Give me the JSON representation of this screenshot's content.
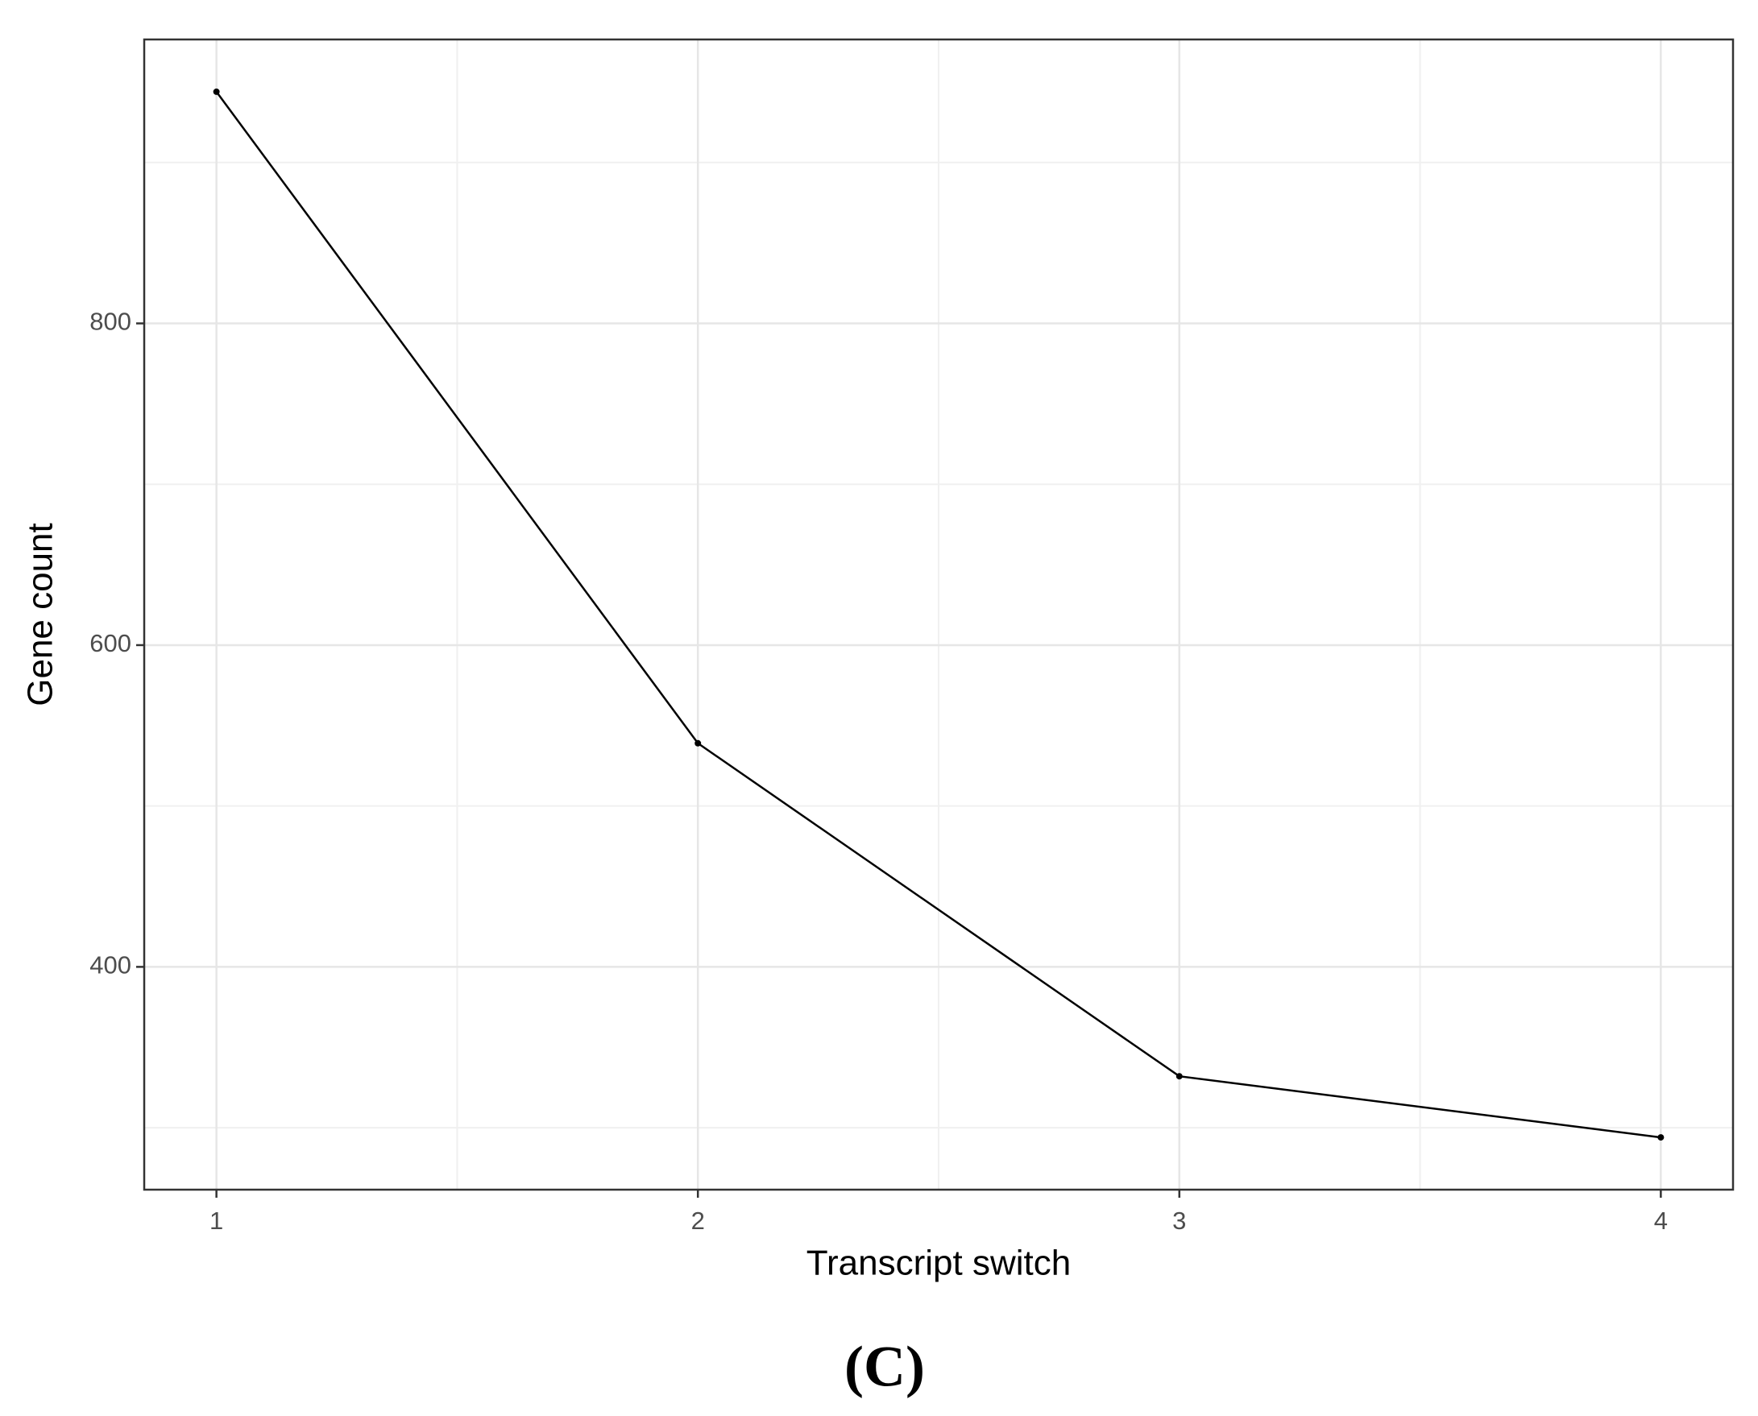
{
  "chart_data": {
    "type": "line",
    "x": [
      1,
      2,
      3,
      4
    ],
    "series": [
      {
        "name": "Gene count",
        "color": "#000000",
        "values": [
          944,
          539,
          332,
          294
        ]
      }
    ],
    "xlim": [
      0.85,
      4.15
    ],
    "xticks": [
      1,
      2,
      3,
      4
    ],
    "ylim": [
      261.5,
      976.5
    ],
    "yticks": [
      400,
      600,
      800
    ],
    "x_minor_grid": [
      1.5,
      2.5,
      3.5
    ],
    "y_minor_grid": [
      300,
      500,
      700,
      900
    ],
    "grid": true,
    "xlabel": "Transcript switch",
    "ylabel": "Gene count",
    "caption": "(C)"
  }
}
